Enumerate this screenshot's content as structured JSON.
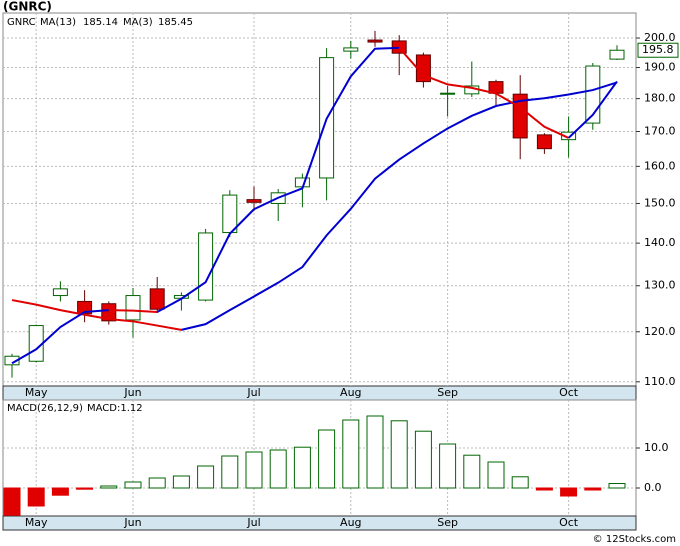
{
  "title": "(GNRC)",
  "footer": "© 12Stocks.com",
  "chart_data": [
    {
      "type": "candlestick",
      "log_scale": true,
      "grid": true,
      "categories": [
        null,
        "May",
        null,
        null,
        null,
        "Jun",
        null,
        null,
        null,
        null,
        "Jul",
        null,
        null,
        null,
        "Aug",
        null,
        null,
        null,
        "Sep",
        null,
        null,
        null,
        null,
        "Oct",
        null,
        null
      ],
      "symbol": "GNRC",
      "symbol_color": "#006400",
      "up_color": "#006400",
      "up_fill": "#ffffff",
      "down_color": "#e00000",
      "down_edge": "#600000",
      "open": [
        113.3,
        114.0,
        127.8,
        126.5,
        126.0,
        122.5,
        129.3,
        127.2,
        126.8,
        142.6,
        151.0,
        150.0,
        154.4,
        156.8,
        195.5,
        199.3,
        199.0,
        194.2,
        181.5,
        181.5,
        185.4,
        181.4,
        169.0,
        167.6,
        172.5,
        192.8
      ],
      "high": [
        115.5,
        121.5,
        131.0,
        129.0,
        126.5,
        129.5,
        132.0,
        128.5,
        143.5,
        153.5,
        154.5,
        153.8,
        158.0,
        196.5,
        199.0,
        202.5,
        201.0,
        195.0,
        184.0,
        192.0,
        186.0,
        187.5,
        169.5,
        174.5,
        191.5,
        197.5
      ],
      "low": [
        110.8,
        113.8,
        126.5,
        122.0,
        121.5,
        118.8,
        124.0,
        124.5,
        126.5,
        141.5,
        148.0,
        145.5,
        149.0,
        150.8,
        193.0,
        197.0,
        187.5,
        183.5,
        174.5,
        180.5,
        178.0,
        162.0,
        163.5,
        162.5,
        170.5,
        192.5
      ],
      "close": [
        115.0,
        121.3,
        129.3,
        123.8,
        122.3,
        127.8,
        124.8,
        127.8,
        142.5,
        152.2,
        150.3,
        152.8,
        156.8,
        193.3,
        196.6,
        198.6,
        194.8,
        185.4,
        181.7,
        184.0,
        181.7,
        168.1,
        165.0,
        169.8,
        190.5,
        195.8
      ],
      "last_close_label": "195.8",
      "rising_color": "#0000d0",
      "falling_color": "#e00000",
      "series": [
        {
          "name": "MA(13)",
          "last_value": 185.14,
          "values": [
            126.8,
            125.8,
            124.6,
            123.6,
            122.7,
            122.2,
            121.3,
            120.4,
            121.6,
            124.6,
            127.6,
            130.7,
            134.3,
            141.9,
            148.6,
            156.6,
            161.9,
            166.5,
            170.9,
            174.7,
            177.7,
            179.3,
            180.1,
            181.3,
            182.7,
            185.14
          ]
        },
        {
          "name": "MA(3)",
          "last_value": 185.45,
          "values": [
            113.6,
            116.4,
            121.0,
            124.2,
            124.6,
            124.5,
            124.2,
            127.1,
            130.8,
            142.3,
            148.5,
            151.5,
            154.0,
            173.8,
            187.1,
            196.3,
            196.6,
            187.5,
            184.5,
            183.4,
            181.6,
            177.3,
            171.4,
            168.1,
            175.0,
            185.45
          ]
        }
      ],
      "ylim": [
        109.2,
        208.9
      ],
      "yticks": [
        {
          "value": 110,
          "label": "110.0"
        },
        {
          "value": 120,
          "label": "120.0"
        },
        {
          "value": 130,
          "label": "130.0"
        },
        {
          "value": 140,
          "label": "140.0"
        },
        {
          "value": 150,
          "label": "150.0"
        },
        {
          "value": 160,
          "label": "160.0"
        },
        {
          "value": 170,
          "label": "170.0"
        },
        {
          "value": 180,
          "label": "180.0"
        },
        {
          "value": 190,
          "label": "190.0"
        },
        {
          "value": 200,
          "label": "200.0"
        }
      ]
    },
    {
      "type": "bar",
      "grid": true,
      "name": "MACD(26,12,9)",
      "current_label": "MACD:1.12",
      "categories": [
        null,
        "May",
        null,
        null,
        null,
        "Jun",
        null,
        null,
        null,
        null,
        "Jul",
        null,
        null,
        null,
        "Aug",
        null,
        null,
        null,
        "Sep",
        null,
        null,
        null,
        null,
        "Oct",
        null,
        null
      ],
      "up_color": "#006400",
      "down_color": "#e00000",
      "values": [
        -6.8,
        -4.5,
        -1.8,
        -0.3,
        0.5,
        1.5,
        2.5,
        3.0,
        5.5,
        8.0,
        9.0,
        9.5,
        10.2,
        14.5,
        17.0,
        18.0,
        16.8,
        14.2,
        11.0,
        8.2,
        6.5,
        2.8,
        -0.5,
        -2.0,
        -0.5,
        1.12
      ],
      "ylim": [
        -7,
        22
      ],
      "yticks": [
        {
          "value": 0,
          "label": "0.0"
        },
        {
          "value": 10,
          "label": "10.0"
        }
      ]
    }
  ]
}
